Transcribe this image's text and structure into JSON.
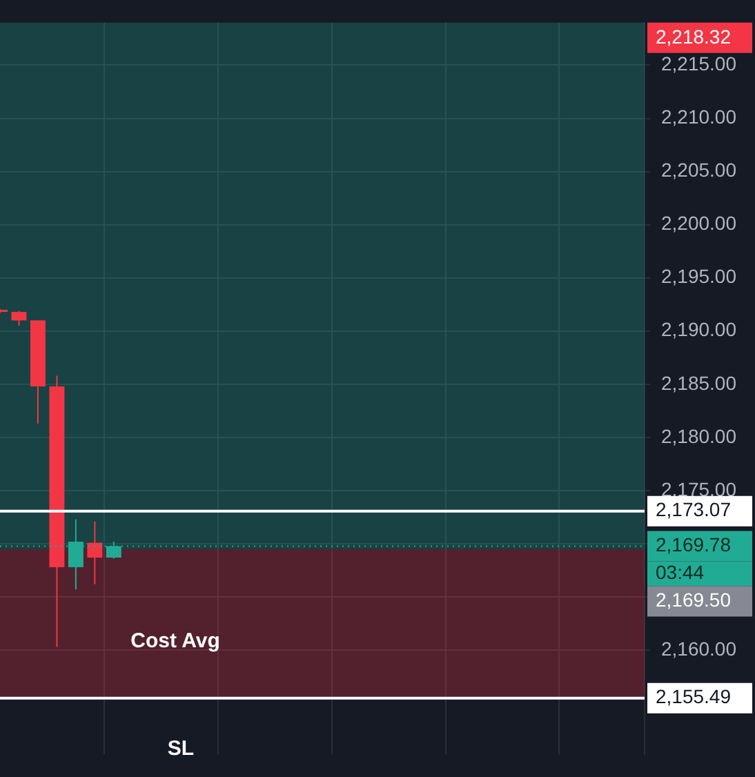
{
  "chart_data": {
    "type": "candlestick",
    "categories": [
      null,
      null,
      null,
      null,
      null,
      null,
      null,
      null,
      null,
      null,
      null,
      null,
      null,
      null,
      null,
      null,
      null,
      null,
      null,
      null,
      null,
      null,
      null,
      null,
      null,
      null,
      null,
      null,
      null,
      null,
      null,
      null,
      null,
      null,
      null
    ],
    "ohlc": [
      [
        2192.0,
        2192.1,
        2191.7,
        2191.8
      ],
      [
        2191.8,
        2191.9,
        2190.5,
        2191.0
      ],
      [
        2191.0,
        2191.0,
        2181.3,
        2184.8
      ],
      [
        2184.8,
        2185.8,
        2160.3,
        2167.8
      ],
      [
        2167.8,
        2172.3,
        2165.7,
        2170.2
      ],
      [
        2170.1,
        2172.1,
        2166.2,
        2168.7
      ],
      [
        2168.7,
        2170.2,
        2168.6,
        2169.78
      ],
      null,
      null,
      null,
      null,
      null,
      null,
      null,
      null,
      null,
      null,
      null,
      null,
      null,
      null,
      null,
      null,
      null,
      null,
      null,
      null,
      null,
      null,
      null,
      null,
      null,
      null,
      null,
      null
    ],
    "colors": [
      "#f23645",
      "#f23645",
      "#f23645",
      "#f23645",
      "#22ab94",
      "#f23645",
      "#22ab94",
      null,
      null,
      null,
      null,
      null,
      null,
      null,
      null,
      null,
      null,
      null,
      null,
      null,
      null,
      null,
      null,
      null,
      null,
      null,
      null,
      null,
      null,
      null,
      null,
      null,
      null,
      null,
      null
    ],
    "ylim": [
      2150.2,
      2219
    ],
    "yticks": [
      {
        "value": 2160,
        "label": "2,160.00"
      },
      {
        "value": 2165,
        "label": null
      },
      {
        "value": 2170,
        "label": null
      },
      {
        "value": 2175,
        "label": "2,175.00"
      },
      {
        "value": 2180,
        "label": "2,180.00"
      },
      {
        "value": 2185,
        "label": "2,185.00"
      },
      {
        "value": 2190,
        "label": "2,190.00"
      },
      {
        "value": 2195,
        "label": "2,195.00"
      },
      {
        "value": 2200,
        "label": "2,200.00"
      },
      {
        "value": 2205,
        "label": "2,205.00"
      },
      {
        "value": 2210,
        "label": "2,210.00"
      },
      {
        "value": 2215,
        "label": "2,215.00"
      }
    ],
    "grid": true,
    "bands": [
      {
        "axis": "y",
        "from": 2169.5,
        "to": 2219,
        "label": null,
        "color": "#22ab94"
      },
      {
        "axis": "y",
        "from": 2155.49,
        "to": 2169.5,
        "label": "Cost Avg",
        "color": "#f23645"
      }
    ],
    "ref_lines": [
      {
        "axis": "y",
        "value": 2173.07,
        "label": "2,173.07",
        "color": "#ffffff",
        "line_style": "solid"
      },
      {
        "axis": "y",
        "value": 2155.49,
        "label": "2,155.49",
        "color": "#ffffff",
        "line_style": "solid"
      },
      {
        "axis": "y",
        "value": 2169.78,
        "label": "2,169.78",
        "color": "#22ab94",
        "line_style": "dotted"
      }
    ],
    "annotations": [
      "2,218.32",
      "03:44",
      "2,169.50",
      "SL"
    ]
  }
}
